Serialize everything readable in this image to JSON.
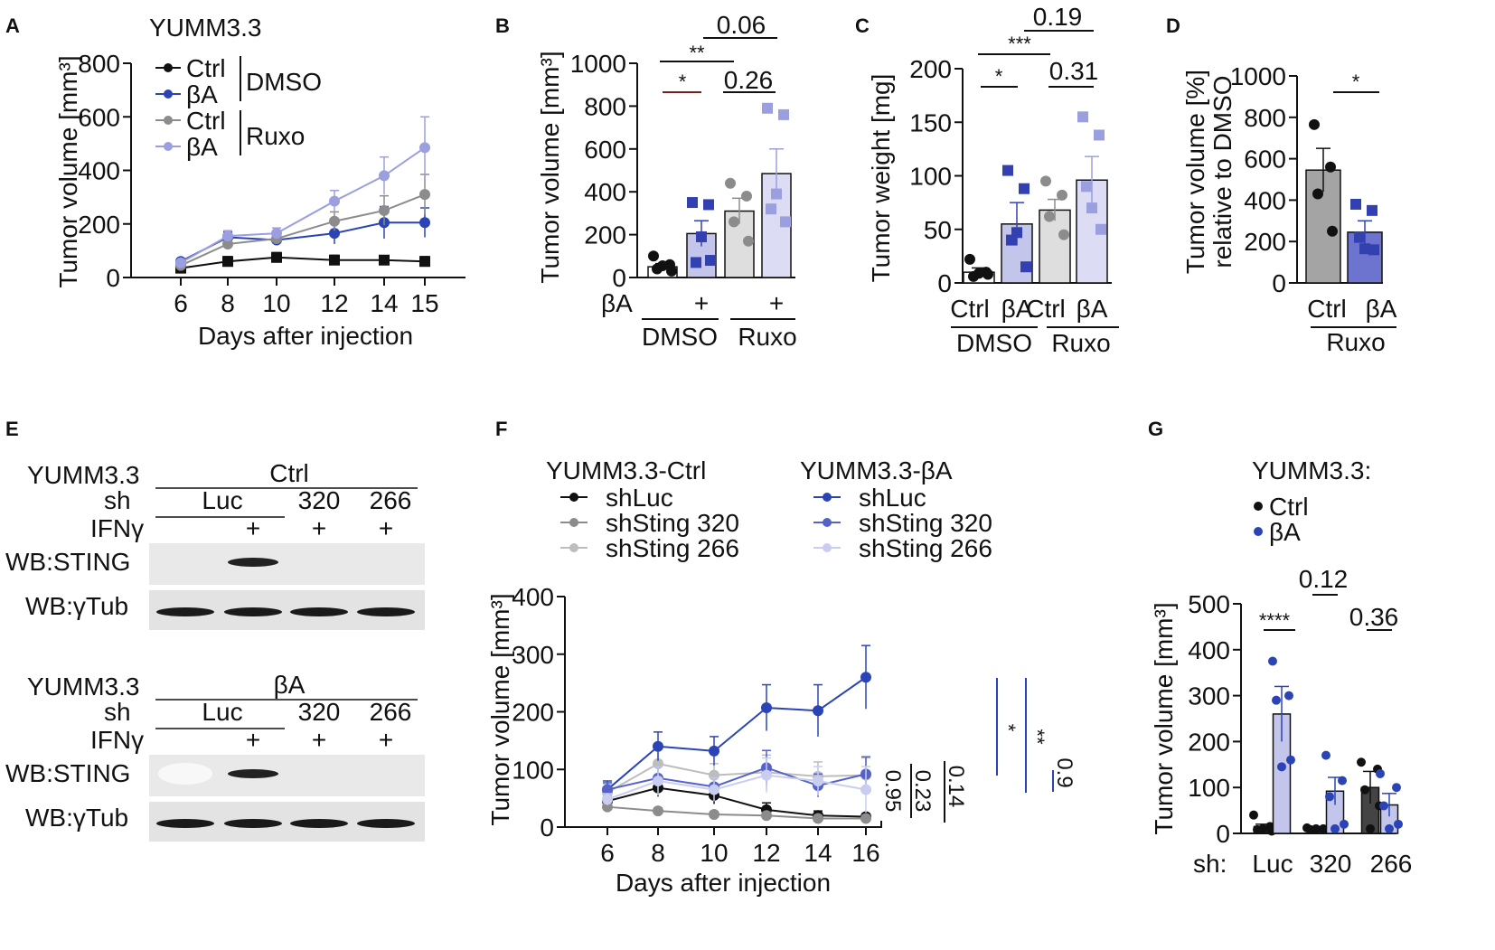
{
  "colors": {
    "black": "#111111",
    "blue": "#2b44b5",
    "grey": "#8c8c8c",
    "lavender": "#9b9fe0",
    "darkblue": "#3340b0",
    "barBlue": "#c3c6ea",
    "barGrey": "#dedede",
    "barLav": "#dcdcf4",
    "barDarkGrey": "#a4a4a4",
    "barDarkBlue": "#6c74cf",
    "lightgrey": "#bdbdbd",
    "palelav": "#c9cdf0",
    "midblue": "#5563c8"
  },
  "panels": {
    "A": {
      "letter": "A",
      "chart_data": {
        "type": "line",
        "title": "YUMM3.3",
        "xlabel": "Days after injection",
        "ylabel": "Tumor volume [mm³]",
        "categories": [
          "6",
          "8",
          "10",
          "12",
          "14",
          "15"
        ],
        "ylim": [
          0,
          800
        ],
        "yticks": [
          "0",
          "200",
          "400",
          "600",
          "800"
        ],
        "series": [
          {
            "name": "Ctrl",
            "group": "DMSO",
            "color": "black",
            "values": [
              35,
              60,
              75,
              65,
              65,
              60
            ],
            "errors": [
              5,
              18,
              18,
              18,
              15,
              18
            ]
          },
          {
            "name": "βA",
            "group": "DMSO",
            "color": "blue",
            "values": [
              60,
              150,
              140,
              165,
              205,
              205
            ],
            "errors": [
              8,
              20,
              20,
              40,
              60,
              55
            ]
          },
          {
            "name": "Ctrl",
            "group": "Ruxo",
            "color": "grey",
            "values": [
              45,
              125,
              145,
              210,
              250,
              310
            ],
            "errors": [
              8,
              20,
              20,
              35,
              55,
              75
            ]
          },
          {
            "name": "βA",
            "group": "Ruxo",
            "color": "lavender",
            "values": [
              55,
              155,
              165,
              285,
              380,
              485
            ],
            "errors": [
              8,
              20,
              20,
              40,
              70,
              115
            ]
          }
        ],
        "legend_groups": [
          "DMSO",
          "Ruxo"
        ]
      }
    },
    "B": {
      "letter": "B",
      "chart_data": {
        "type": "bar",
        "ylabel": "Tumor volume [mm³]",
        "ylim": [
          0,
          1000
        ],
        "yticks": [
          "0",
          "200",
          "400",
          "600",
          "800",
          "1000"
        ],
        "row_label": "βA",
        "bars": [
          {
            "name": "DMSO Ctrl",
            "mark": "",
            "mean": 50,
            "sem": 15,
            "fill": "#ffffff",
            "dot": "black",
            "shape": "circle",
            "points": [
              100,
              60,
              40,
              30,
              55
            ]
          },
          {
            "name": "DMSO βA",
            "mark": "+",
            "mean": 205,
            "sem": 60,
            "fill": "barBlue",
            "dot": "darkblue",
            "shape": "square",
            "points": [
              350,
              340,
              70,
              80,
              190
            ]
          },
          {
            "name": "Ruxo Ctrl",
            "mark": "",
            "mean": 310,
            "sem": 60,
            "fill": "barGrey",
            "dot": "grey",
            "shape": "circle",
            "points": [
              440,
              380,
              260,
              170
            ]
          },
          {
            "name": "Ruxo βA",
            "mark": "+",
            "mean": 485,
            "sem": 115,
            "fill": "barLav",
            "dot": "lavender",
            "shape": "square",
            "points": [
              790,
              760,
              320,
              260,
              390
            ]
          }
        ],
        "groups": [
          "DMSO",
          "Ruxo"
        ],
        "stats": [
          {
            "label": "*",
            "from": 0,
            "to": 1
          },
          {
            "label": "**",
            "from": 0,
            "to": 2
          },
          {
            "label": "0.26",
            "from": 2,
            "to": 3
          },
          {
            "label": "0.06",
            "from": 1,
            "to": 3
          }
        ]
      }
    },
    "C": {
      "letter": "C",
      "chart_data": {
        "type": "bar",
        "ylabel": "Tumor weight [mg]",
        "ylim": [
          0,
          200
        ],
        "yticks": [
          "0",
          "50",
          "100",
          "150",
          "200"
        ],
        "bars": [
          {
            "name": "Ctrl",
            "mean": 10,
            "sem": 4,
            "fill": "#ffffff",
            "dot": "black",
            "shape": "circle",
            "points": [
              22,
              10,
              6,
              8,
              9
            ]
          },
          {
            "name": "βA",
            "mean": 55,
            "sem": 20,
            "fill": "barBlue",
            "dot": "darkblue",
            "shape": "square",
            "points": [
              105,
              88,
              40,
              15,
              47
            ]
          },
          {
            "name": "Ctrl",
            "mean": 68,
            "sem": 10,
            "fill": "barGrey",
            "dot": "grey",
            "shape": "circle",
            "points": [
              95,
              82,
              62,
              45
            ]
          },
          {
            "name": "βA",
            "mean": 96,
            "sem": 22,
            "fill": "barLav",
            "dot": "lavender",
            "shape": "square",
            "points": [
              155,
              138,
              90,
              50,
              70
            ]
          }
        ],
        "groups": [
          "DMSO",
          "Ruxo"
        ],
        "stats": [
          {
            "label": "*",
            "from": 0,
            "to": 1
          },
          {
            "label": "***",
            "from": 0,
            "to": 2
          },
          {
            "label": "0.31",
            "from": 2,
            "to": 3
          },
          {
            "label": "0.19",
            "from": 1,
            "to": 3
          }
        ]
      }
    },
    "D": {
      "letter": "D",
      "chart_data": {
        "type": "bar",
        "ylabel_line1": "Tumor volume [%]",
        "ylabel_line2": "relative to DMSO",
        "ylim": [
          0,
          1000
        ],
        "yticks": [
          "0",
          "200",
          "400",
          "600",
          "800",
          "1000"
        ],
        "bars": [
          {
            "name": "Ctrl",
            "mean": 545,
            "sem": 105,
            "fill": "barDarkGrey",
            "dot": "black",
            "shape": "circle",
            "points": [
              765,
              560,
              430,
              250
            ]
          },
          {
            "name": "βA",
            "mean": 245,
            "sem": 55,
            "fill": "barDarkBlue",
            "dot": "darkblue",
            "shape": "square",
            "points": [
              380,
              350,
              220,
              160,
              165
            ]
          }
        ],
        "group": "Ruxo",
        "stats": [
          {
            "label": "*",
            "from": 0,
            "to": 1
          }
        ]
      }
    },
    "E": {
      "letter": "E",
      "blots": [
        {
          "cell": "YUMM3.3",
          "condition": "Ctrl",
          "sh_label": "sh",
          "sh_luc": "Luc",
          "sh_320": "320",
          "sh_266": "266",
          "ifn_label": "IFNγ",
          "ifn_marks": [
            "",
            "+",
            "+",
            "+"
          ],
          "row1": "WB:STING",
          "row2": "WB:γTub"
        },
        {
          "cell": "YUMM3.3",
          "condition": "βA",
          "sh_label": "sh",
          "sh_luc": "Luc",
          "sh_320": "320",
          "sh_266": "266",
          "ifn_label": "IFNγ",
          "ifn_marks": [
            "",
            "+",
            "+",
            "+"
          ],
          "row1": "WB:STING",
          "row2": "WB:γTub"
        }
      ]
    },
    "F": {
      "letter": "F",
      "chart_data": {
        "type": "line",
        "xlabel": "Days after injection",
        "ylabel": "Tumor volume [mm³]",
        "categories": [
          "6",
          "8",
          "10",
          "12",
          "14",
          "16"
        ],
        "ylim": [
          0,
          400
        ],
        "yticks": [
          "0",
          "100",
          "200",
          "300",
          "400"
        ],
        "legend_title_ctrl": "YUMM3.3-Ctrl",
        "legend_title_ba": "YUMM3.3-βA",
        "series": [
          {
            "name": "shLuc",
            "group": "Ctrl",
            "color": "black",
            "values": [
              45,
              68,
              55,
              30,
              20,
              18
            ],
            "errors": [
              8,
              15,
              15,
              12,
              8,
              5
            ]
          },
          {
            "name": "shSting 320",
            "group": "Ctrl",
            "color": "grey",
            "values": [
              35,
              28,
              22,
              20,
              15,
              15
            ],
            "errors": [
              5,
              5,
              5,
              5,
              5,
              5
            ]
          },
          {
            "name": "shSting 266",
            "group": "Ctrl",
            "color": "lightgrey",
            "values": [
              60,
              110,
              90,
              95,
              88,
              90
            ],
            "errors": [
              15,
              30,
              20,
              30,
              25,
              30
            ]
          },
          {
            "name": "shLuc",
            "group": "βA",
            "color": "blue",
            "values": [
              65,
              140,
              132,
              207,
              202,
              260
            ],
            "errors": [
              15,
              25,
              25,
              40,
              45,
              55
            ]
          },
          {
            "name": "shSting 320",
            "group": "βA",
            "color": "midblue",
            "values": [
              65,
              85,
              70,
              103,
              72,
              92
            ],
            "errors": [
              12,
              20,
              15,
              30,
              20,
              30
            ]
          },
          {
            "name": "shSting 266",
            "group": "βA",
            "color": "palelav",
            "values": [
              48,
              80,
              65,
              90,
              80,
              65
            ],
            "errors": [
              10,
              25,
              20,
              30,
              25,
              40
            ]
          }
        ],
        "stats_black": [
          "0.95",
          "0.23",
          "0.14"
        ],
        "stats_blue": [
          "*",
          "**",
          "0.9"
        ]
      }
    },
    "G": {
      "letter": "G",
      "chart_data": {
        "type": "bar",
        "title": "YUMM3.3:",
        "ylabel": "Tumor volume [mm³]",
        "ylim": [
          0,
          500
        ],
        "yticks": [
          "0",
          "100",
          "200",
          "300",
          "400",
          "500"
        ],
        "row_label": "sh:",
        "legend": [
          {
            "name": "Ctrl",
            "color": "black"
          },
          {
            "name": "βA",
            "color": "blue"
          }
        ],
        "groups": [
          "Luc",
          "320",
          "266"
        ],
        "bars": [
          {
            "name": "Luc Ctrl",
            "mean": 15,
            "sem": 5,
            "fill": "#222222",
            "dot": "black",
            "points": [
              40,
              15,
              8,
              5,
              10
            ]
          },
          {
            "name": "Luc βA",
            "mean": 260,
            "sem": 60,
            "fill": "barBlue",
            "dot": "blue",
            "points": [
              375,
              300,
              290,
              160,
              145
            ]
          },
          {
            "name": "320 Ctrl",
            "mean": 10,
            "sem": 3,
            "fill": "#222222",
            "dot": "black",
            "points": [
              12,
              10,
              8,
              8,
              10
            ]
          },
          {
            "name": "320 βA",
            "mean": 92,
            "sem": 30,
            "fill": "barBlue",
            "dot": "blue",
            "points": [
              170,
              115,
              80,
              20,
              10
            ]
          },
          {
            "name": "266 Ctrl",
            "mean": 100,
            "sem": 35,
            "fill": "#444444",
            "dot": "black",
            "points": [
              155,
              140,
              95,
              60,
              10
            ]
          },
          {
            "name": "266 βA",
            "mean": 62,
            "sem": 25,
            "fill": "barBlue",
            "dot": "blue",
            "points": [
              130,
              100,
              60,
              20,
              10
            ]
          }
        ],
        "stats": [
          {
            "label": "****",
            "bar": 0
          },
          {
            "label": "0.12",
            "bar": 2
          },
          {
            "label": "0.36",
            "bar": 4
          }
        ]
      }
    }
  }
}
